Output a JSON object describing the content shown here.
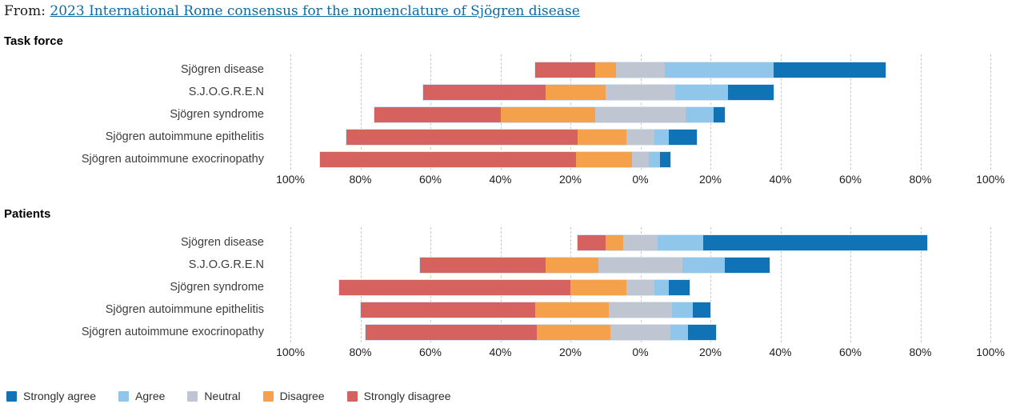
{
  "header": {
    "prefix": "From: ",
    "link_text": "2023 International Rome consensus for the nomenclature of Sjögren disease"
  },
  "axis": {
    "tick_labels": [
      "100%",
      "80%",
      "60%",
      "40%",
      "20%",
      "0%",
      "20%",
      "40%",
      "60%",
      "80%",
      "100%"
    ]
  },
  "legend": [
    {
      "label": "Strongly agree",
      "color": "#0f73b5"
    },
    {
      "label": "Agree",
      "color": "#90c6e9"
    },
    {
      "label": "Neutral",
      "color": "#bfc5d1"
    },
    {
      "label": "Disagree",
      "color": "#f5a04b"
    },
    {
      "label": "Strongly disagree",
      "color": "#d5625e"
    }
  ],
  "chart_data": [
    {
      "type": "bar",
      "variant": "diverging-stacked-likert",
      "title": "Task force",
      "unit": "%",
      "xlim": [
        -100,
        100
      ],
      "grid_step_pct": 20,
      "diverging_rule": "first two series plot left of zero; third (Neutral) straddles zero evenly; remaining plot right",
      "categories": [
        "Sjögren disease",
        "S.J.O.G.R.E.N",
        "Sjögren syndrome",
        "Sjögren autoimmune epithelitis",
        "Sjögren autoimmune exocrinopathy"
      ],
      "series": [
        {
          "name": "Strongly disagree",
          "color": "#d5625e",
          "values": [
            17,
            35,
            36,
            66,
            73
          ]
        },
        {
          "name": "Disagree",
          "color": "#f5a04b",
          "values": [
            6,
            17,
            27,
            14,
            16
          ]
        },
        {
          "name": "Neutral",
          "color": "#bfc5d1",
          "values": [
            14,
            20,
            26,
            8,
            5
          ]
        },
        {
          "name": "Agree",
          "color": "#90c6e9",
          "values": [
            31,
            15,
            8,
            4,
            3
          ]
        },
        {
          "name": "Strongly agree",
          "color": "#0f73b5",
          "values": [
            32,
            13,
            3,
            8,
            3
          ]
        }
      ]
    },
    {
      "type": "bar",
      "variant": "diverging-stacked-likert",
      "title": "Patients",
      "unit": "%",
      "xlim": [
        -100,
        100
      ],
      "grid_step_pct": 20,
      "diverging_rule": "first two series plot left of zero; third (Neutral) straddles zero evenly; remaining plot right",
      "categories": [
        "Sjögren disease",
        "S.J.O.G.R.E.N",
        "Sjögren syndrome",
        "Sjögren autoimmune epithelitis",
        "Sjögren autoimmune exocrinopathy"
      ],
      "series": [
        {
          "name": "Strongly disagree",
          "color": "#d5625e",
          "values": [
            8,
            36,
            66,
            50,
            49
          ]
        },
        {
          "name": "Disagree",
          "color": "#f5a04b",
          "values": [
            5,
            15,
            16,
            21,
            21
          ]
        },
        {
          "name": "Neutral",
          "color": "#bfc5d1",
          "values": [
            10,
            24,
            8,
            18,
            17
          ]
        },
        {
          "name": "Agree",
          "color": "#90c6e9",
          "values": [
            13,
            12,
            4,
            6,
            5
          ]
        },
        {
          "name": "Strongly agree",
          "color": "#0f73b5",
          "values": [
            64,
            13,
            6,
            5,
            8
          ]
        }
      ]
    }
  ]
}
